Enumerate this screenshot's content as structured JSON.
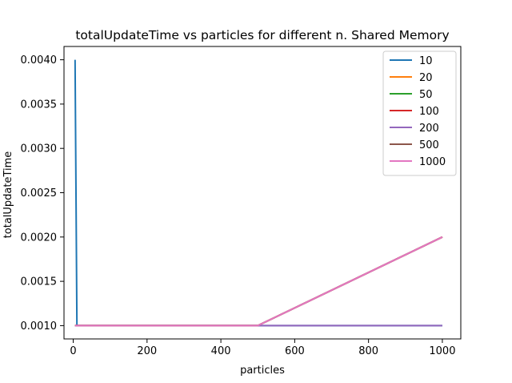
{
  "chart_data": {
    "type": "line",
    "title": "totalUpdateTime vs particles for different n. Shared Memory",
    "xlabel": "particles",
    "ylabel": "totalUpdateTime",
    "xlim": [
      -25,
      1050
    ],
    "ylim": [
      0.00085,
      0.00415
    ],
    "xticks": [
      0,
      200,
      400,
      600,
      800,
      1000
    ],
    "xtick_labels": [
      "0",
      "200",
      "400",
      "600",
      "800",
      "1000"
    ],
    "yticks": [
      0.001,
      0.0015,
      0.002,
      0.0025,
      0.003,
      0.0035,
      0.004
    ],
    "ytick_labels": [
      "0.0010",
      "0.0015",
      "0.0020",
      "0.0025",
      "0.0030",
      "0.0035",
      "0.0040"
    ],
    "grid": false,
    "legend_position": "top-right",
    "series": [
      {
        "name": "10",
        "color": "#1f77b4",
        "x": [
          5,
          10,
          50,
          100,
          200,
          500,
          1000
        ],
        "y": [
          0.004,
          0.001,
          0.001,
          0.001,
          0.001,
          0.001,
          0.001
        ]
      },
      {
        "name": "20",
        "color": "#ff7f0e",
        "x": [
          5,
          10,
          50,
          100,
          200,
          500,
          1000
        ],
        "y": [
          0.001,
          0.001,
          0.001,
          0.001,
          0.001,
          0.001,
          0.002
        ]
      },
      {
        "name": "50",
        "color": "#2ca02c",
        "x": [
          5,
          10,
          50,
          100,
          200,
          500,
          1000
        ],
        "y": [
          0.001,
          0.001,
          0.001,
          0.001,
          0.001,
          0.001,
          0.002
        ]
      },
      {
        "name": "100",
        "color": "#d62728",
        "x": [
          5,
          10,
          50,
          100,
          200,
          500,
          1000
        ],
        "y": [
          0.001,
          0.001,
          0.001,
          0.001,
          0.001,
          0.001,
          0.002
        ]
      },
      {
        "name": "200",
        "color": "#9467bd",
        "x": [
          5,
          10,
          50,
          100,
          200,
          500,
          1000
        ],
        "y": [
          0.001,
          0.001,
          0.001,
          0.001,
          0.001,
          0.001,
          0.001
        ]
      },
      {
        "name": "500",
        "color": "#8c564b",
        "x": [
          5,
          10,
          50,
          100,
          200,
          500,
          1000
        ],
        "y": [
          0.001,
          0.001,
          0.001,
          0.001,
          0.001,
          0.001,
          0.002
        ]
      },
      {
        "name": "1000",
        "color": "#e377c2",
        "x": [
          5,
          10,
          50,
          100,
          200,
          500,
          1000
        ],
        "y": [
          0.001,
          0.001,
          0.001,
          0.001,
          0.001,
          0.001,
          0.002
        ]
      }
    ]
  }
}
